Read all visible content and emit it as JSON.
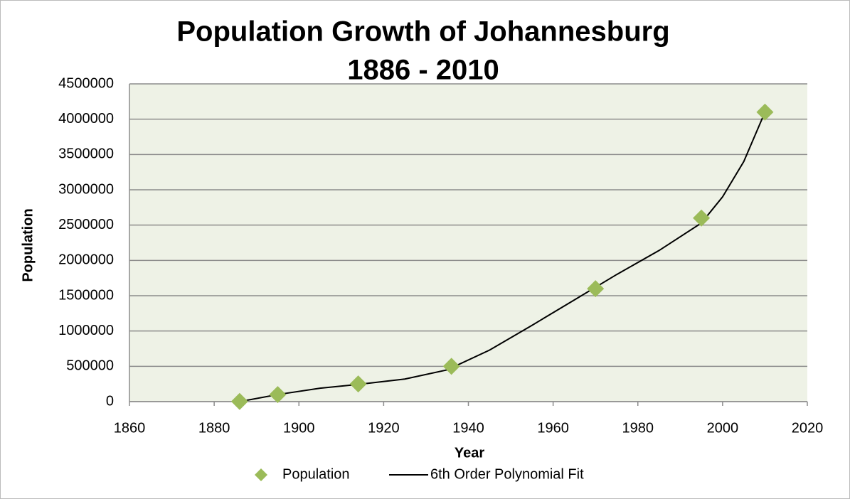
{
  "chart_data": {
    "type": "scatter",
    "title": [
      "Population Growth of Johannesburg",
      "1886 - 2010"
    ],
    "x_label": "Year",
    "y_label": "Population",
    "xlim": [
      1860,
      2020
    ],
    "xticks": [
      1860,
      1880,
      1900,
      1920,
      1940,
      1960,
      1980,
      2000,
      2020
    ],
    "ylim": [
      0,
      4500000
    ],
    "yticks": [
      0,
      500000,
      1000000,
      1500000,
      2000000,
      2500000,
      3000000,
      3500000,
      4000000,
      4500000
    ],
    "grid": true,
    "legend": "bottom",
    "series": [
      {
        "name": "Population",
        "mode": "markers",
        "color": "#9bbb59",
        "x": [
          1886,
          1895,
          1914,
          1936,
          1970,
          1995,
          2010
        ],
        "values": [
          3000,
          100000,
          250000,
          500000,
          1600000,
          2600000,
          4100000
        ]
      },
      {
        "name": "6th Order Polynomial Fit",
        "mode": "line",
        "color": "#000000",
        "x": [
          1886,
          1895,
          1905,
          1915,
          1925,
          1935,
          1945,
          1955,
          1965,
          1975,
          1985,
          1995,
          2000,
          2005,
          2010
        ],
        "values": [
          0,
          100000,
          190000,
          250000,
          320000,
          450000,
          730000,
          1080000,
          1440000,
          1800000,
          2140000,
          2530000,
          2900000,
          3400000,
          4100000
        ]
      }
    ]
  }
}
